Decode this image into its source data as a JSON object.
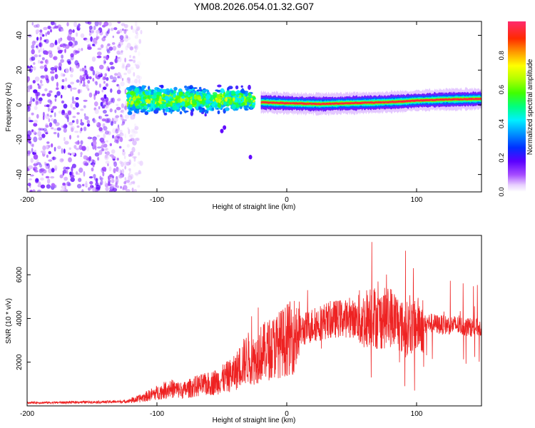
{
  "figure_title": "YM08.2026.054.01.32.G07",
  "colors": {
    "snr_line": "#ee2222",
    "axes": "#000000",
    "background": "#ffffff",
    "spectral_ramp": [
      "#ff2a6e",
      "#ff2222",
      "#ff7f00",
      "#ffff00",
      "#00ff00",
      "#00ffff",
      "#0044ff",
      "#4400ff",
      "#8800ff",
      "#e0c8ff"
    ]
  },
  "chart_data": [
    {
      "type": "heatmap",
      "title": "",
      "xlabel": "Height of straight line (km)",
      "ylabel": "Frequency (Hz)",
      "xlim": [
        -200,
        150
      ],
      "ylim": [
        -50,
        48
      ],
      "xticks": [
        "-200",
        "-100",
        "0",
        "100"
      ],
      "yticks": [
        "40",
        "20",
        "0",
        "-20",
        "-40"
      ],
      "colorbar": {
        "label": "Normalized spectral amplitude",
        "range": [
          0,
          1
        ],
        "ticks": [
          "0.0",
          "0.2",
          "0.4",
          "0.6",
          "0.8"
        ]
      },
      "regions": [
        {
          "x_range": [
            -200,
            -120
          ],
          "freq_range": [
            -50,
            48
          ],
          "amplitude": 0.12,
          "description": "noise"
        },
        {
          "x_range": [
            -122,
            -25
          ],
          "freq_range": [
            -15,
            15
          ],
          "amplitude": 0.35
        },
        {
          "x_range": [
            -20,
            150
          ],
          "center_freq": [
            [
              -20,
              1.5
            ],
            [
              0,
              1
            ],
            [
              25,
              0.5
            ],
            [
              50,
              1
            ],
            [
              75,
              1.5
            ],
            [
              90,
              2
            ],
            [
              100,
              2.5
            ],
            [
              120,
              3
            ],
            [
              150,
              3.5
            ]
          ],
          "bandwidth": 6,
          "amplitude": 0.95
        }
      ]
    },
    {
      "type": "line",
      "title": "",
      "xlabel": "Height of straight line (km)",
      "ylabel": "SNR (10 * v/v)",
      "xlim": [
        -200,
        150
      ],
      "ylim": [
        0,
        7800
      ],
      "xticks": [
        "-200",
        "-100",
        "0",
        "100"
      ],
      "yticks": [
        "2000",
        "4000",
        "6000"
      ],
      "series": [
        {
          "name": "SNR",
          "envelope_x": [
            -200,
            -180,
            -160,
            -140,
            -125,
            -115,
            -100,
            -90,
            -80,
            -70,
            -60,
            -50,
            -40,
            -35,
            -30,
            -25,
            -20,
            -10,
            0,
            10,
            20,
            30,
            40,
            50,
            60,
            65,
            70,
            80,
            85,
            90,
            95,
            100,
            105,
            110,
            120,
            130,
            140,
            150
          ],
          "envelope_y": [
            150,
            150,
            170,
            180,
            200,
            300,
            600,
            800,
            700,
            900,
            1000,
            1200,
            1500,
            1900,
            2200,
            2100,
            2400,
            2700,
            3000,
            3400,
            3700,
            3900,
            4000,
            4000,
            3900,
            4300,
            3900,
            4100,
            3900,
            3500,
            3600,
            3700,
            3700,
            3800,
            3700,
            3700,
            3600,
            3600
          ],
          "spikes": [
            {
              "x": 65.5,
              "y": 7500
            },
            {
              "x": 65.0,
              "y": 1300
            },
            {
              "x": 91.5,
              "y": 7100
            },
            {
              "x": 91.0,
              "y": 900
            },
            {
              "x": 97.5,
              "y": 6300
            },
            {
              "x": 98.5,
              "y": 700
            },
            {
              "x": -27,
              "y": 4100
            },
            {
              "x": -22,
              "y": 4500
            }
          ]
        }
      ]
    }
  ]
}
